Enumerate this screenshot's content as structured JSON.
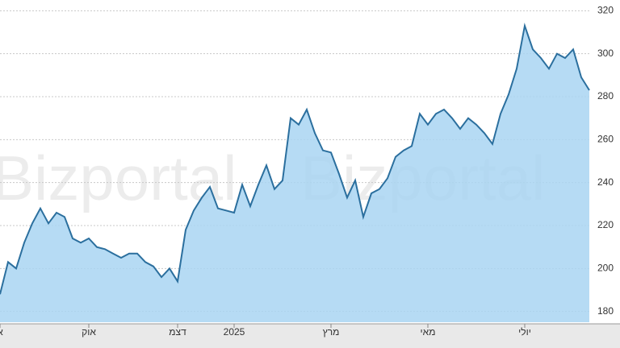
{
  "chart_data": {
    "type": "area",
    "watermark": [
      "Bizportal",
      "Bizportal"
    ],
    "categories": [
      "א",
      null,
      null,
      null,
      null,
      null,
      null,
      null,
      null,
      null,
      null,
      "אוק",
      null,
      null,
      null,
      null,
      null,
      null,
      null,
      null,
      null,
      null,
      "דצמ",
      null,
      null,
      null,
      null,
      null,
      null,
      "2025",
      null,
      null,
      null,
      null,
      null,
      null,
      null,
      null,
      null,
      null,
      null,
      "מרץ",
      null,
      null,
      null,
      null,
      null,
      null,
      null,
      null,
      null,
      null,
      null,
      "מאי",
      null,
      null,
      null,
      null,
      null,
      null,
      null,
      null,
      null,
      null,
      null,
      "יולי",
      null,
      null,
      null,
      null,
      null,
      null,
      null,
      null
    ],
    "values": [
      188,
      203,
      200,
      212,
      221,
      228,
      221,
      226,
      224,
      214,
      212,
      214,
      210,
      209,
      207,
      205,
      207,
      207,
      203,
      201,
      196,
      200,
      194,
      218,
      227,
      233,
      238,
      228,
      227,
      226,
      239,
      229,
      239,
      248,
      237,
      241,
      270,
      267,
      274,
      263,
      255,
      254,
      244,
      233,
      241,
      224,
      235,
      237,
      242,
      252,
      255,
      257,
      272,
      267,
      272,
      274,
      270,
      265,
      270,
      267,
      263,
      258,
      272,
      281,
      293,
      313,
      302,
      298,
      293,
      300,
      298,
      302,
      289,
      283
    ],
    "color": "#2b6f9e",
    "fill": "#a9d5f2",
    "ylim": [
      175,
      325
    ],
    "yticks": [
      180,
      200,
      220,
      240,
      260,
      280,
      300,
      320
    ],
    "grid": true
  }
}
